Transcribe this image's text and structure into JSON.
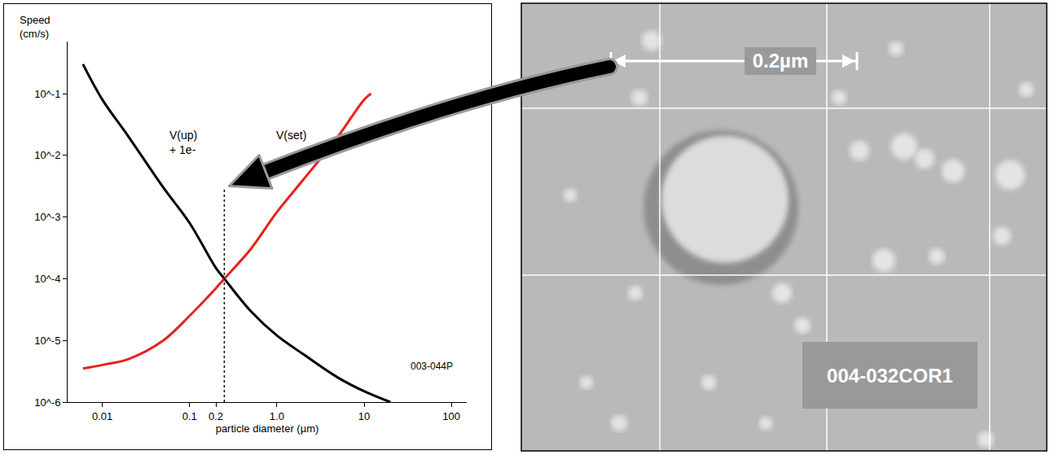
{
  "chart_data": {
    "type": "line",
    "x_label": "particle diameter (µm)",
    "y_label": "Speed (cm/s)",
    "log": true,
    "grid": false,
    "xlim": [
      0.004,
      150
    ],
    "ylim": [
      1e-06,
      0.7
    ],
    "xticks": [
      0.01,
      0.1,
      0.2,
      {
        "value": 1,
        "label": "1.0"
      },
      10,
      100
    ],
    "yticks": [
      {
        "value": 0.1,
        "label": "10^-1"
      },
      {
        "value": 0.01,
        "label": "10^-2"
      },
      {
        "value": 0.001,
        "label": "10^-3"
      },
      {
        "value": 0.0001,
        "label": "10^-4"
      },
      {
        "value": 1e-05,
        "label": "10^-5"
      },
      {
        "value": 1e-06,
        "label": "10^-6"
      }
    ],
    "series": [
      {
        "name": "V(up) + 1e-",
        "color": "#000000",
        "line_style": "solid",
        "x": [
          0.006,
          0.01,
          0.02,
          0.05,
          0.1,
          0.2,
          0.25,
          0.5,
          1,
          2,
          5,
          10,
          20
        ],
        "values": [
          0.3,
          0.08,
          0.02,
          0.003,
          0.0008,
          0.00015,
          0.0001,
          3e-05,
          1.2e-05,
          6e-06,
          2.5e-06,
          1.5e-06,
          1e-06
        ]
      },
      {
        "name": "V(set)",
        "color": "#e8211b",
        "line_style": "solid",
        "x": [
          0.006,
          0.01,
          0.02,
          0.05,
          0.1,
          0.2,
          0.25,
          0.5,
          1,
          2,
          5,
          10,
          12
        ],
        "values": [
          3.5e-06,
          4e-06,
          5e-06,
          1e-05,
          2.5e-05,
          7e-05,
          0.0001,
          0.0003,
          0.0012,
          0.004,
          0.02,
          0.08,
          0.1
        ]
      }
    ],
    "reference_line": {
      "x": 0.25,
      "y_from": 1e-06,
      "y_to": 0.003
    },
    "annotations": [
      "003-044P"
    ]
  },
  "micrograph": {
    "scale_bar": "0.2µm",
    "label": "004-032COR1"
  }
}
